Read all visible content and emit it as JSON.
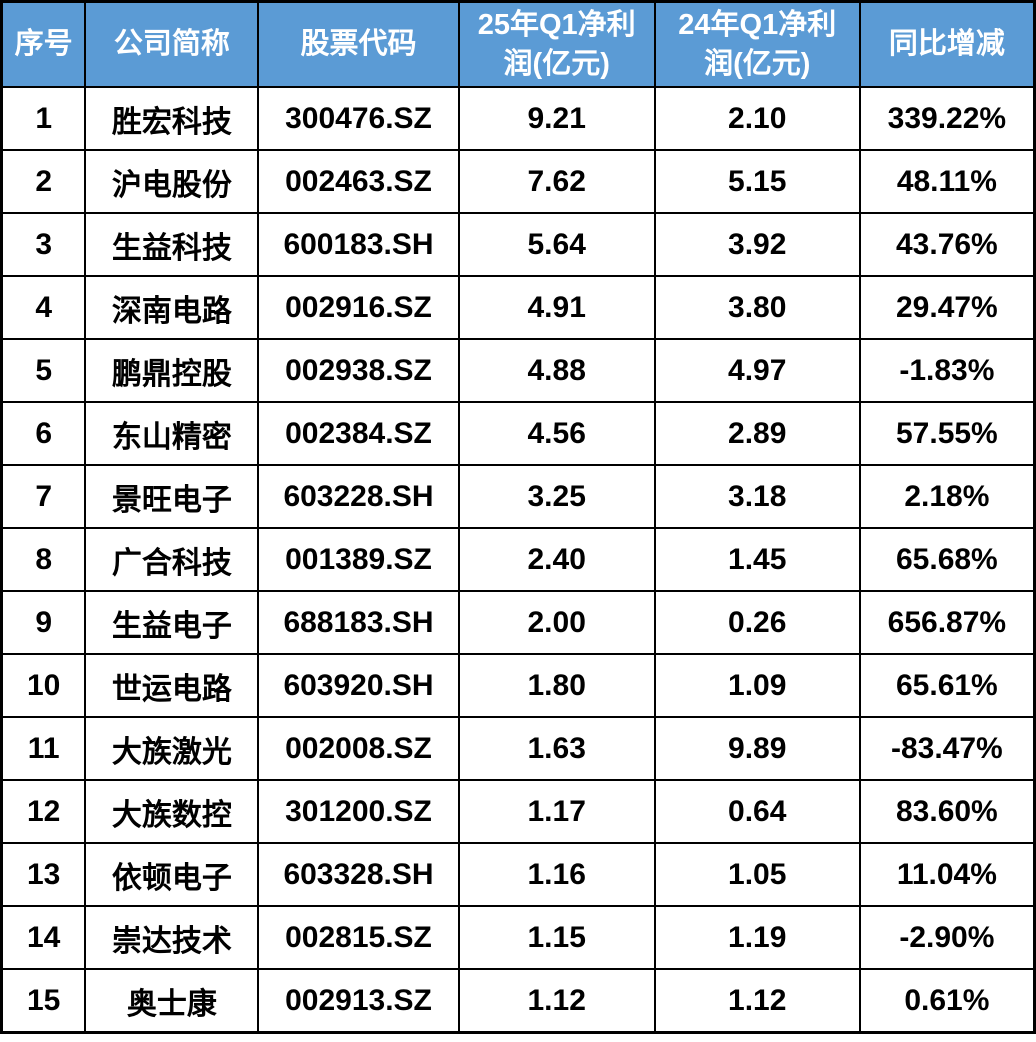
{
  "chart_data": {
    "type": "table",
    "columns": [
      "序号",
      "公司简称",
      "股票代码",
      "25年Q1净利润(亿元)",
      "24年Q1净利润(亿元)",
      "同比增减"
    ],
    "columns_display": [
      "序号",
      "公司简称",
      "股票代码",
      "25年Q1净利\n润(亿元)",
      "24年Q1净利\n润(亿元)",
      "同比增减"
    ],
    "rows": [
      [
        "1",
        "胜宏科技",
        "300476.SZ",
        "9.21",
        "2.10",
        "339.22%"
      ],
      [
        "2",
        "沪电股份",
        "002463.SZ",
        "7.62",
        "5.15",
        "48.11%"
      ],
      [
        "3",
        "生益科技",
        "600183.SH",
        "5.64",
        "3.92",
        "43.76%"
      ],
      [
        "4",
        "深南电路",
        "002916.SZ",
        "4.91",
        "3.80",
        "29.47%"
      ],
      [
        "5",
        "鹏鼎控股",
        "002938.SZ",
        "4.88",
        "4.97",
        "-1.83%"
      ],
      [
        "6",
        "东山精密",
        "002384.SZ",
        "4.56",
        "2.89",
        "57.55%"
      ],
      [
        "7",
        "景旺电子",
        "603228.SH",
        "3.25",
        "3.18",
        "2.18%"
      ],
      [
        "8",
        "广合科技",
        "001389.SZ",
        "2.40",
        "1.45",
        "65.68%"
      ],
      [
        "9",
        "生益电子",
        "688183.SH",
        "2.00",
        "0.26",
        "656.87%"
      ],
      [
        "10",
        "世运电路",
        "603920.SH",
        "1.80",
        "1.09",
        "65.61%"
      ],
      [
        "11",
        "大族激光",
        "002008.SZ",
        "1.63",
        "9.89",
        "-83.47%"
      ],
      [
        "12",
        "大族数控",
        "301200.SZ",
        "1.17",
        "0.64",
        "83.60%"
      ],
      [
        "13",
        "依顿电子",
        "603328.SH",
        "1.16",
        "1.05",
        "11.04%"
      ],
      [
        "14",
        "崇达技术",
        "002815.SZ",
        "1.15",
        "1.19",
        "-2.90%"
      ],
      [
        "15",
        "奥士康",
        "002913.SZ",
        "1.12",
        "1.12",
        "0.61%"
      ]
    ],
    "column_semantics": [
      "index",
      "company-name",
      "stock-code",
      "q1-2025-profit",
      "q1-2024-profit",
      "yoy-change"
    ]
  },
  "colors": {
    "header_bg": "#5B9BD5",
    "header_text": "#FFFFFF",
    "grid_border": "#000000",
    "body_text": "#000000",
    "page_bg": "#FFFFFF"
  }
}
